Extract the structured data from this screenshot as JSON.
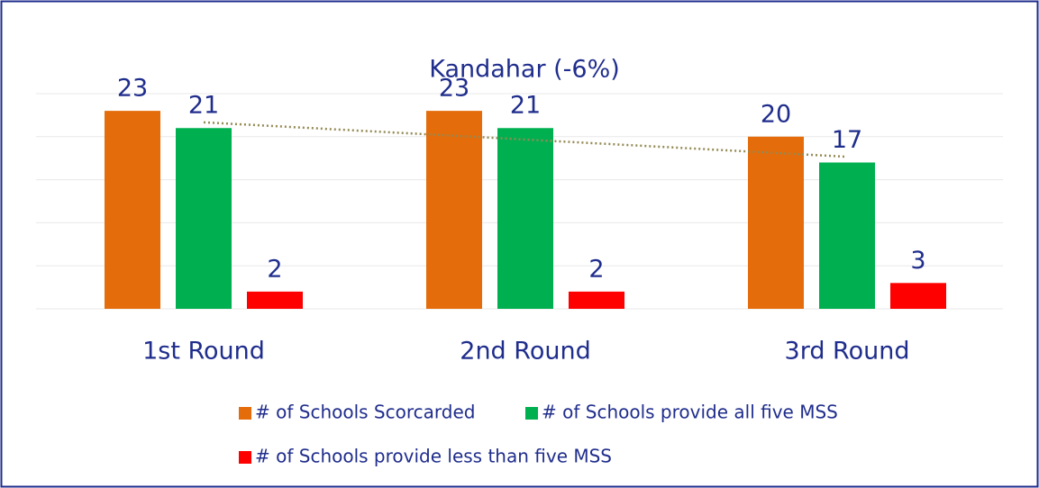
{
  "chart_data": {
    "type": "bar",
    "title": "Kandahar (-6%)",
    "categories": [
      "1st Round",
      "2nd Round",
      "3rd Round"
    ],
    "series": [
      {
        "name": "# of Schools Scorcarded",
        "color": "#e46c0a",
        "values": [
          23,
          23,
          20
        ]
      },
      {
        "name": "# of Schools provide all five MSS",
        "color": "#00b050",
        "values": [
          21,
          21,
          17
        ]
      },
      {
        "name": "# of Schools provide less than five MSS",
        "color": "#ff0000",
        "values": [
          2,
          2,
          3
        ]
      }
    ],
    "ylim": [
      0,
      25
    ],
    "yticks": [
      0,
      5,
      10,
      15,
      20,
      25
    ],
    "grid": true,
    "trendline": {
      "series": 1,
      "color": "#948a54"
    }
  }
}
